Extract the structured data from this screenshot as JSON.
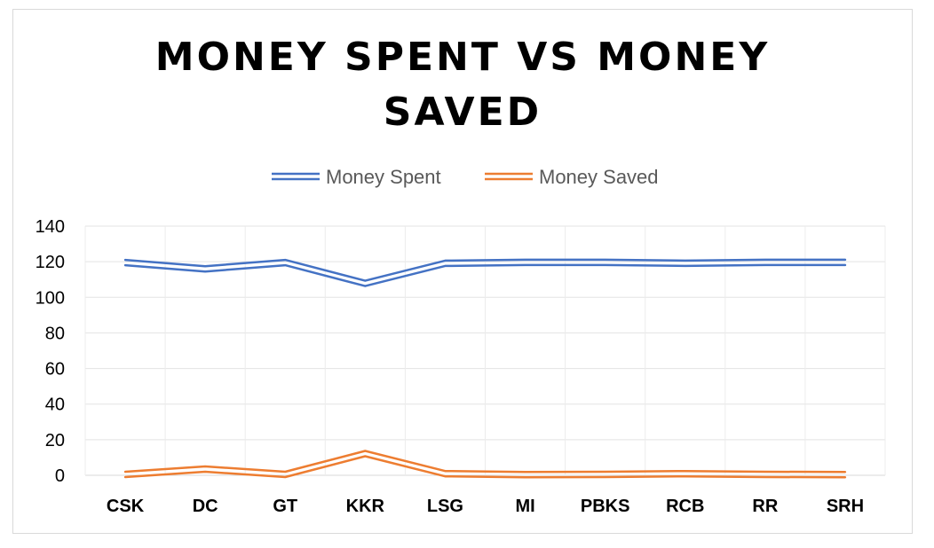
{
  "chart_data": {
    "type": "line",
    "title": "MONEY SPENT VS MONEY SAVED",
    "title_lines": [
      "MONEY SPENT VS MONEY",
      "SAVED"
    ],
    "categories": [
      "CSK",
      "DC",
      "GT",
      "KKR",
      "LSG",
      "MI",
      "PBKS",
      "RCB",
      "RR",
      "SRH"
    ],
    "series": [
      {
        "name": "Money Spent",
        "color": "#4472C4",
        "values": [
          119.5,
          116,
          119.5,
          107.8,
          119.1,
          119.6,
          119.6,
          119.1,
          119.6,
          119.6
        ]
      },
      {
        "name": "Money Saved",
        "color": "#ED7D31",
        "values": [
          0.5,
          3.5,
          0.5,
          12.2,
          0.9,
          0.4,
          0.5,
          0.9,
          0.5,
          0.4
        ]
      }
    ],
    "ylim": [
      0,
      140
    ],
    "yticks": [
      "0",
      "20",
      "40",
      "60",
      "80",
      "100",
      "120",
      "140"
    ],
    "xlabel": "",
    "ylabel": "",
    "grid": true,
    "legend_position": "top",
    "line_style": "double"
  }
}
